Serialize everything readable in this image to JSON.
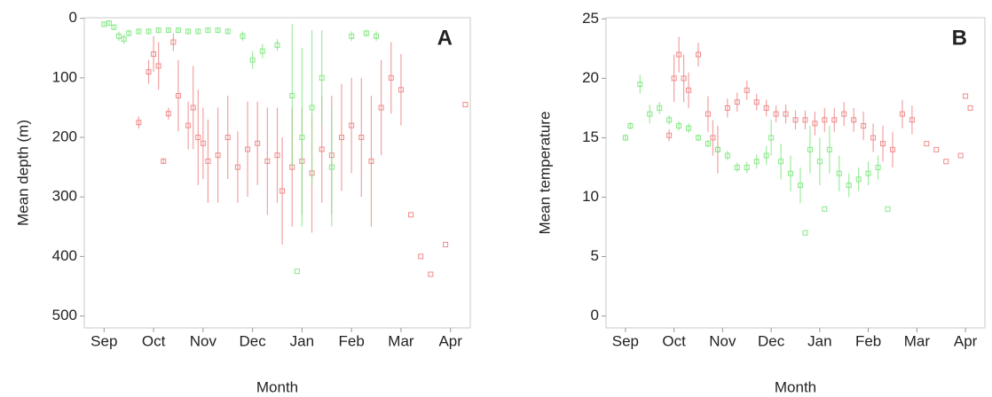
{
  "chart_data": [
    {
      "type": "scatter",
      "panel_label": "A",
      "xlabel": "Month",
      "ylabel": "Mean depth (m)",
      "xlim": [
        -0.4,
        7.4
      ],
      "xticks": [
        {
          "value": 0,
          "label": "Sep"
        },
        {
          "value": 1,
          "label": "Oct"
        },
        {
          "value": 2,
          "label": "Nov"
        },
        {
          "value": 3,
          "label": "Dec"
        },
        {
          "value": 4,
          "label": "Jan"
        },
        {
          "value": 5,
          "label": "Feb"
        },
        {
          "value": 6,
          "label": "Mar"
        },
        {
          "value": 7,
          "label": "Apr"
        }
      ],
      "ylim": [
        -1,
        520
      ],
      "yticks": [
        0,
        100,
        200,
        300,
        400,
        500
      ],
      "y_inverted": true,
      "series": [
        {
          "color": "#f08a8a",
          "x": [
            0.7,
            0.9,
            1.0,
            1.1,
            1.2,
            1.3,
            1.4,
            1.5,
            1.7,
            1.8,
            1.9,
            2.0,
            2.1,
            2.3,
            2.5,
            2.7,
            2.9,
            3.1,
            3.3,
            3.5,
            3.6,
            3.8,
            4.0,
            4.2,
            4.4,
            4.6,
            4.8,
            5.0,
            5.2,
            5.4,
            5.6,
            5.8,
            6.0,
            6.2,
            6.4,
            6.6,
            6.9,
            7.3
          ],
          "values": [
            175,
            90,
            60,
            80,
            240,
            160,
            40,
            130,
            180,
            150,
            200,
            210,
            240,
            230,
            200,
            250,
            220,
            210,
            240,
            230,
            290,
            250,
            240,
            260,
            220,
            230,
            200,
            180,
            200,
            240,
            150,
            100,
            120,
            330,
            400,
            430,
            380,
            145
          ],
          "errors": [
            10,
            20,
            30,
            40,
            5,
            10,
            15,
            60,
            40,
            70,
            80,
            60,
            70,
            80,
            70,
            60,
            80,
            70,
            90,
            80,
            90,
            100,
            90,
            100,
            90,
            100,
            90,
            80,
            100,
            110,
            80,
            60,
            60,
            0,
            0,
            0,
            0,
            0
          ]
        },
        {
          "color": "#86e886",
          "x": [
            0.0,
            0.1,
            0.2,
            0.3,
            0.4,
            0.5,
            0.7,
            0.9,
            1.1,
            1.3,
            1.5,
            1.7,
            1.9,
            2.1,
            2.3,
            2.5,
            2.8,
            3.0,
            3.2,
            3.5,
            3.8,
            3.9,
            4.0,
            4.2,
            4.4,
            4.6,
            5.0,
            5.3,
            5.5
          ],
          "values": [
            10,
            8,
            15,
            30,
            35,
            25,
            22,
            22,
            20,
            20,
            20,
            22,
            22,
            20,
            20,
            22,
            30,
            70,
            55,
            45,
            130,
            425,
            200,
            150,
            100,
            250,
            30,
            25,
            30
          ],
          "errors": [
            3,
            3,
            5,
            8,
            8,
            6,
            5,
            5,
            4,
            4,
            4,
            5,
            5,
            4,
            4,
            5,
            8,
            15,
            12,
            10,
            120,
            0,
            150,
            130,
            80,
            100,
            8,
            6,
            8
          ]
        }
      ]
    },
    {
      "type": "scatter",
      "panel_label": "B",
      "xlabel": "Month",
      "ylabel": "Mean temperature",
      "xlim": [
        -0.4,
        7.4
      ],
      "xticks": [
        {
          "value": 0,
          "label": "Sep"
        },
        {
          "value": 1,
          "label": "Oct"
        },
        {
          "value": 2,
          "label": "Nov"
        },
        {
          "value": 3,
          "label": "Dec"
        },
        {
          "value": 4,
          "label": "Jan"
        },
        {
          "value": 5,
          "label": "Feb"
        },
        {
          "value": 6,
          "label": "Mar"
        },
        {
          "value": 7,
          "label": "Apr"
        }
      ],
      "ylim": [
        -1,
        25.1
      ],
      "yticks": [
        0,
        5,
        10,
        15,
        20,
        25
      ],
      "y_inverted": false,
      "series": [
        {
          "color": "#f08a8a",
          "x": [
            0.9,
            1.0,
            1.1,
            1.2,
            1.3,
            1.5,
            1.7,
            1.8,
            1.9,
            2.1,
            2.3,
            2.5,
            2.7,
            2.9,
            3.1,
            3.3,
            3.5,
            3.7,
            3.9,
            4.1,
            4.3,
            4.5,
            4.7,
            4.9,
            5.1,
            5.3,
            5.5,
            5.7,
            5.9,
            6.2,
            6.4,
            6.6,
            6.9,
            7.0,
            7.1
          ],
          "values": [
            15.2,
            20,
            22,
            20,
            19,
            22,
            17,
            15,
            14,
            17.5,
            18,
            19,
            18,
            17.5,
            17,
            17,
            16.5,
            16.5,
            16.2,
            16.5,
            16.5,
            17,
            16.5,
            16,
            15,
            14.5,
            14,
            17,
            16.5,
            14.5,
            14,
            13,
            13.5,
            18.5,
            17.5
          ],
          "errors": [
            0.5,
            2,
            1.5,
            2,
            1.5,
            1,
            1.5,
            1.5,
            2,
            0.8,
            0.8,
            0.8,
            0.7,
            0.7,
            0.7,
            0.8,
            0.8,
            0.8,
            1,
            1,
            1,
            1,
            1,
            1.2,
            1.2,
            1.5,
            1.5,
            1.2,
            1.2,
            0,
            0,
            0,
            0,
            0,
            0
          ]
        },
        {
          "color": "#86e886",
          "x": [
            0.0,
            0.1,
            0.3,
            0.5,
            0.7,
            0.9,
            1.1,
            1.3,
            1.5,
            1.7,
            1.9,
            2.1,
            2.3,
            2.5,
            2.7,
            2.9,
            3.0,
            3.2,
            3.4,
            3.6,
            3.7,
            3.8,
            4.0,
            4.1,
            4.2,
            4.4,
            4.6,
            4.8,
            5.0,
            5.2,
            5.4
          ],
          "values": [
            15,
            16,
            19.5,
            17,
            17.5,
            16.5,
            16,
            15.8,
            15,
            14.5,
            14,
            13.5,
            12.5,
            12.5,
            13,
            13.5,
            15,
            13,
            12,
            11,
            7,
            14,
            13,
            9,
            14,
            12,
            11,
            11.5,
            12,
            12.5,
            9
          ],
          "errors": [
            0.3,
            0.3,
            0.8,
            0.8,
            0.5,
            0.4,
            0.4,
            0.4,
            0.3,
            0.3,
            0.3,
            0.4,
            0.4,
            0.5,
            0.6,
            0.8,
            1.5,
            1.5,
            1.5,
            1.5,
            0,
            2,
            2,
            0,
            2,
            1.5,
            1,
            1,
            1,
            1,
            0
          ]
        }
      ]
    }
  ]
}
